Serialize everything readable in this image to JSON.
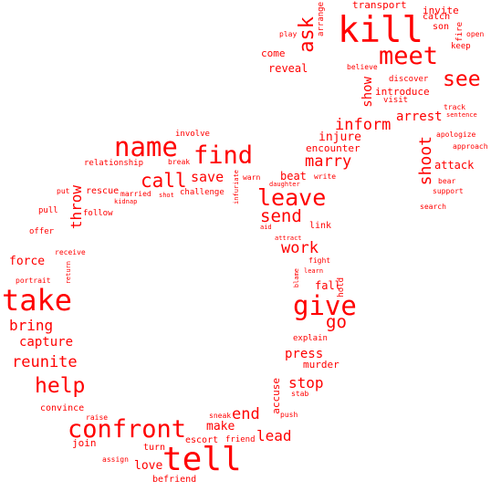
{
  "text_color": "#ff0000",
  "background_color": "#ffffff",
  "words": [
    "kill",
    "meet",
    "ask",
    "see",
    "transport",
    "invite",
    "catch",
    "son",
    "fire",
    "open",
    "keep",
    "arrange",
    "play",
    "come",
    "reveal",
    "believe",
    "discover",
    "show",
    "introduce",
    "visit",
    "track",
    "sentence",
    "arrest",
    "apologize",
    "approach",
    "inform",
    "injure",
    "encounter",
    "marry",
    "shoot",
    "attack",
    "bear",
    "support",
    "search",
    "involve",
    "name",
    "find",
    "relationship",
    "break",
    "call",
    "save",
    "warn",
    "infuriate",
    "beat",
    "write",
    "daughter",
    "leave",
    "put",
    "rescue",
    "married",
    "shot",
    "challenge",
    "kidnap",
    "pull",
    "throw",
    "follow",
    "send",
    "aid",
    "link",
    "offer",
    "attract",
    "work",
    "fight",
    "receive",
    "force",
    "learn",
    "blame",
    "return",
    "portrait",
    "fall",
    "hold",
    "take",
    "give",
    "go",
    "bring",
    "explain",
    "capture",
    "press",
    "murder",
    "reunite",
    "help",
    "stop",
    "accuse",
    "stab",
    "convince",
    "raise",
    "push",
    "sneak",
    "end",
    "confront",
    "make",
    "lead",
    "join",
    "escort",
    "friend",
    "turn",
    "assign",
    "love",
    "tell",
    "befriend"
  ]
}
